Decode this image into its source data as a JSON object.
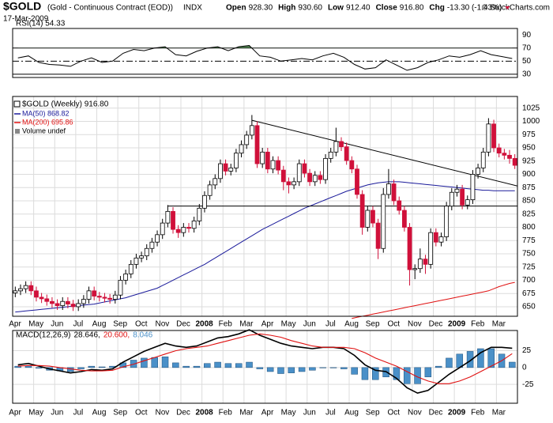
{
  "header": {
    "symbol": "$GOLD",
    "name": "(Gold - Continuous Contract (EOD))",
    "exchange": "INDX",
    "date": "17-Mar-2009",
    "copyright": "© StockCharts.com",
    "quote": [
      {
        "label": "Open",
        "value": "928.30"
      },
      {
        "label": "High",
        "value": "930.60"
      },
      {
        "label": "Low",
        "value": "912.40"
      },
      {
        "label": "Close",
        "value": "916.80"
      },
      {
        "label": "Chg",
        "value": "-13.30 (-1.43%)"
      }
    ]
  },
  "chart_data": [
    {
      "type": "line",
      "title": "RSI(14) 54.33",
      "color": "#000000",
      "fill_color": "#4f7f4f",
      "values": [
        55,
        58,
        48,
        45,
        44,
        42,
        50,
        55,
        48,
        50,
        62,
        68,
        66,
        70,
        72,
        60,
        58,
        65,
        70,
        72,
        66,
        72,
        74,
        58,
        56,
        50,
        52,
        54,
        52,
        58,
        62,
        56,
        45,
        38,
        40,
        52,
        44,
        36,
        40,
        48,
        52,
        58,
        56,
        60,
        66,
        60,
        57,
        54
      ],
      "ylim": [
        25,
        100
      ],
      "yticks": [
        30,
        50,
        70,
        90
      ],
      "ref_lines": [
        {
          "value": 70
        },
        {
          "value": 50,
          "dash": true
        },
        {
          "value": 30
        }
      ]
    },
    {
      "type": "candlestick",
      "title": "$GOLD (Weekly) 916.80",
      "note": "Volume undef",
      "up_color": "#ffffff",
      "down_color": "#d0103a",
      "categories": [
        "Apr",
        null,
        null,
        null,
        "May",
        null,
        null,
        null,
        "Jun",
        null,
        null,
        null,
        "Jul",
        null,
        null,
        null,
        "Aug",
        null,
        null,
        null,
        "Sep",
        null,
        null,
        null,
        "Oct",
        null,
        null,
        null,
        "Nov",
        null,
        null,
        null,
        "Dec",
        null,
        null,
        null,
        "2008",
        null,
        null,
        null,
        "Feb",
        null,
        null,
        null,
        "Mar",
        null,
        null,
        null,
        "Apr",
        null,
        null,
        null,
        "May",
        null,
        null,
        null,
        "Jun",
        null,
        null,
        null,
        "Jul",
        null,
        null,
        null,
        "Aug",
        null,
        null,
        null,
        "Sep",
        null,
        null,
        null,
        "Oct",
        null,
        null,
        null,
        "Nov",
        null,
        null,
        null,
        "Dec",
        null,
        null,
        null,
        "2009",
        null,
        null,
        null,
        "Feb",
        null,
        null,
        null,
        "Mar",
        null,
        null,
        null
      ],
      "open": [
        676,
        680,
        684,
        690,
        680,
        668,
        665,
        660,
        656,
        652,
        660,
        655,
        650,
        656,
        664,
        680,
        670,
        668,
        666,
        664,
        672,
        700,
        712,
        730,
        742,
        746,
        760,
        772,
        786,
        808,
        830,
        796,
        790,
        800,
        798,
        812,
        836,
        860,
        880,
        892,
        920,
        906,
        912,
        940,
        956,
        974,
        992,
        920,
        942,
        910,
        926,
        908,
        886,
        880,
        886,
        920,
        902,
        886,
        898,
        890,
        930,
        942,
        962,
        952,
        926,
        910,
        862,
        800,
        832,
        808,
        760,
        862,
        882,
        850,
        832,
        800,
        720,
        722,
        740,
        730,
        790,
        772,
        782,
        840,
        866,
        872,
        842,
        852,
        900,
        912,
        942,
        995,
        950,
        940,
        936,
        930
      ],
      "high": [
        688,
        692,
        698,
        698,
        688,
        676,
        673,
        668,
        664,
        668,
        668,
        663,
        664,
        672,
        688,
        688,
        678,
        676,
        674,
        680,
        708,
        720,
        738,
        750,
        754,
        768,
        780,
        794,
        816,
        842,
        838,
        804,
        808,
        808,
        820,
        844,
        868,
        888,
        900,
        928,
        928,
        920,
        948,
        964,
        982,
        1012,
        1000,
        950,
        950,
        934,
        934,
        916,
        894,
        894,
        928,
        928,
        910,
        906,
        906,
        938,
        950,
        988,
        970,
        960,
        934,
        918,
        870,
        840,
        840,
        816,
        874,
        910,
        890,
        858,
        840,
        808,
        730,
        760,
        748,
        798,
        798,
        790,
        848,
        874,
        880,
        880,
        860,
        908,
        920,
        950,
        1006,
        1003,
        958,
        948,
        946,
        938
      ],
      "low": [
        668,
        672,
        676,
        672,
        660,
        657,
        652,
        648,
        644,
        644,
        647,
        642,
        642,
        648,
        656,
        662,
        660,
        658,
        656,
        656,
        664,
        692,
        704,
        722,
        734,
        738,
        752,
        764,
        778,
        800,
        788,
        780,
        782,
        790,
        790,
        804,
        828,
        852,
        872,
        884,
        898,
        898,
        904,
        932,
        948,
        966,
        912,
        912,
        902,
        902,
        900,
        870,
        864,
        872,
        878,
        894,
        878,
        878,
        882,
        882,
        922,
        934,
        944,
        918,
        902,
        854,
        786,
        792,
        800,
        740,
        752,
        854,
        842,
        824,
        792,
        690,
        702,
        714,
        712,
        722,
        764,
        764,
        774,
        832,
        858,
        834,
        834,
        844,
        892,
        904,
        934,
        942,
        932,
        928,
        920,
        910
      ],
      "close": [
        680,
        684,
        690,
        680,
        668,
        665,
        660,
        656,
        652,
        660,
        655,
        650,
        656,
        664,
        680,
        670,
        668,
        666,
        664,
        672,
        700,
        712,
        730,
        742,
        746,
        760,
        772,
        786,
        808,
        830,
        796,
        790,
        800,
        798,
        812,
        836,
        860,
        880,
        892,
        920,
        906,
        912,
        940,
        956,
        974,
        992,
        920,
        942,
        910,
        926,
        908,
        886,
        880,
        886,
        920,
        902,
        886,
        898,
        890,
        930,
        942,
        962,
        952,
        926,
        910,
        862,
        800,
        832,
        808,
        760,
        862,
        882,
        850,
        832,
        800,
        720,
        722,
        740,
        730,
        790,
        772,
        782,
        840,
        866,
        872,
        842,
        852,
        900,
        912,
        942,
        995,
        950,
        940,
        936,
        930,
        917
      ],
      "series": [
        {
          "name": "MA(50) 868.82",
          "color": "#1a1a9a",
          "values": [
            640,
            641,
            642,
            643,
            644,
            645,
            646,
            647,
            648,
            649,
            650,
            651,
            652,
            653,
            654,
            655,
            657,
            659,
            661,
            663,
            665,
            667,
            670,
            673,
            676,
            679,
            682,
            685,
            690,
            695,
            700,
            705,
            710,
            715,
            720,
            725,
            730,
            736,
            742,
            748,
            754,
            760,
            766,
            772,
            778,
            784,
            790,
            796,
            801,
            806,
            811,
            816,
            821,
            826,
            831,
            836,
            840,
            844,
            848,
            852,
            856,
            860,
            864,
            868,
            871,
            874,
            877,
            880,
            882,
            884,
            885,
            886,
            886,
            886,
            885,
            884,
            883,
            882,
            881,
            880,
            879,
            878,
            877,
            876,
            875,
            874,
            873,
            872,
            871,
            870,
            870,
            869,
            869,
            869,
            869,
            869
          ]
        },
        {
          "name": "MA(200) 695.86",
          "color": "#e01010",
          "values": [
            null,
            null,
            null,
            null,
            null,
            null,
            null,
            null,
            null,
            null,
            null,
            null,
            null,
            null,
            null,
            null,
            null,
            null,
            null,
            null,
            null,
            null,
            null,
            null,
            null,
            null,
            null,
            null,
            null,
            null,
            null,
            null,
            null,
            null,
            null,
            null,
            null,
            null,
            null,
            null,
            null,
            null,
            null,
            null,
            null,
            null,
            null,
            null,
            null,
            null,
            null,
            null,
            null,
            null,
            null,
            null,
            null,
            null,
            null,
            null,
            null,
            null,
            null,
            null,
            628,
            630,
            632,
            634,
            636,
            638,
            640,
            642,
            644,
            646,
            648,
            650,
            652,
            654,
            656,
            658,
            660,
            662,
            664,
            666,
            668,
            670,
            672,
            674,
            676,
            678,
            680,
            684,
            688,
            691,
            694,
            696
          ]
        }
      ],
      "trendlines": [
        {
          "x": [
            45,
            95
          ],
          "y": [
            1002,
            878
          ]
        },
        {
          "x": [
            29,
            95
          ],
          "y": [
            840,
            840
          ]
        }
      ],
      "ylim": [
        632,
        1047
      ],
      "yticks": [
        650,
        675,
        700,
        725,
        750,
        775,
        800,
        825,
        850,
        875,
        900,
        925,
        950,
        975,
        1000,
        1025
      ],
      "grid": true
    },
    {
      "type": "line",
      "title": "MACD(12,26,9)",
      "legend_values": [
        "28.646,",
        "20.600,",
        "8.046"
      ],
      "categories": [
        "Apr",
        null,
        "May",
        null,
        "Jun",
        null,
        "Jul",
        null,
        "Aug",
        null,
        "Sep",
        null,
        "Oct",
        null,
        "Nov",
        null,
        "Dec",
        null,
        "2008",
        null,
        "Feb",
        null,
        "Mar",
        null,
        "Apr",
        null,
        "May",
        null,
        "Jun",
        null,
        "Jul",
        null,
        "Aug",
        null,
        "Sep",
        null,
        "Oct",
        null,
        "Nov",
        null,
        "Dec",
        null,
        "2009",
        null,
        "Feb",
        null,
        "Mar",
        null
      ],
      "series": [
        {
          "name": "MACD",
          "color": "#000000",
          "values": [
            4,
            6,
            2,
            -2,
            -5,
            -8,
            -6,
            -3,
            -4,
            -2,
            8,
            16,
            24,
            30,
            36,
            32,
            30,
            32,
            38,
            44,
            46,
            50,
            56,
            48,
            42,
            36,
            32,
            30,
            28,
            30,
            30,
            28,
            18,
            4,
            -4,
            -6,
            -16,
            -30,
            -38,
            -34,
            -22,
            -10,
            0,
            10,
            22,
            30,
            30,
            28.646
          ]
        },
        {
          "name": "Signal",
          "color": "#e01010",
          "values": [
            2,
            3,
            3,
            2,
            0,
            -2,
            -4,
            -5,
            -5,
            -4,
            1,
            5,
            10,
            15,
            20,
            25,
            28,
            30,
            32,
            36,
            40,
            44,
            48,
            50,
            48,
            45,
            40,
            36,
            32,
            30,
            30,
            30,
            28,
            22,
            14,
            8,
            2,
            -6,
            -14,
            -20,
            -24,
            -24,
            -20,
            -14,
            -6,
            2,
            10,
            20.6
          ]
        },
        {
          "name": "Histogram",
          "color": "#4a90c8",
          "bars": true,
          "values": [
            2,
            3,
            -1,
            -4,
            -5,
            -6,
            -2,
            2,
            1,
            2,
            7,
            11,
            14,
            15,
            16,
            7,
            2,
            2,
            6,
            8,
            6,
            6,
            8,
            -2,
            -6,
            -9,
            -8,
            -6,
            -4,
            0,
            0,
            -2,
            -10,
            -18,
            -18,
            -14,
            -18,
            -24,
            -24,
            -14,
            2,
            14,
            20,
            24,
            28,
            28,
            20,
            8.046
          ]
        }
      ],
      "ylim": [
        -53,
        55
      ],
      "yticks": [
        -25,
        0,
        25
      ],
      "grid": true
    }
  ]
}
